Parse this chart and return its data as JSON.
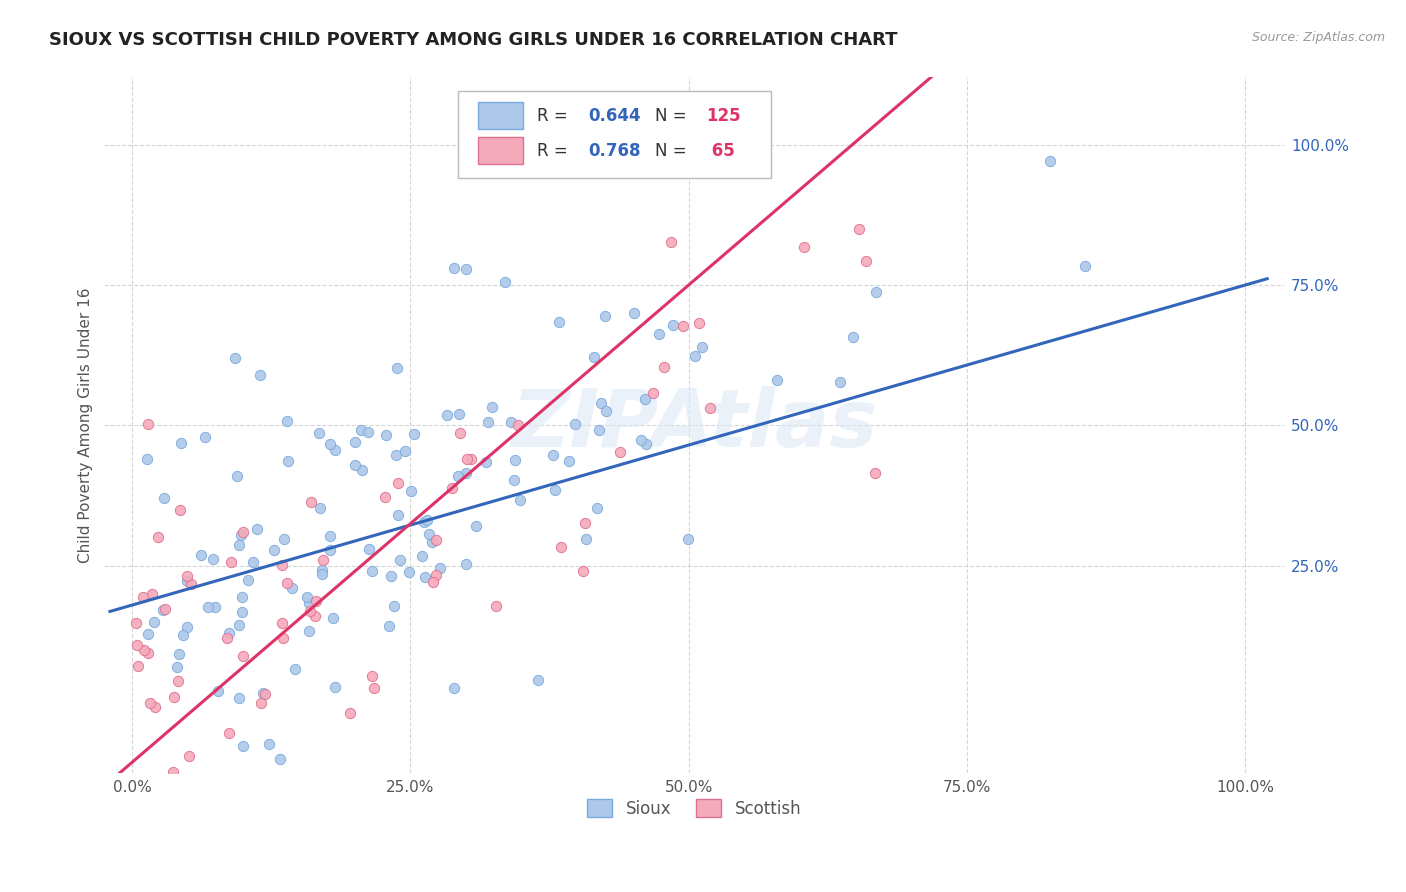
{
  "title": "SIOUX VS SCOTTISH CHILD POVERTY AMONG GIRLS UNDER 16 CORRELATION CHART",
  "source": "Source: ZipAtlas.com",
  "ylabel": "Child Poverty Among Girls Under 16",
  "watermark": "ZIPAtlas",
  "xtick_labels": [
    "0.0%",
    "25.0%",
    "50.0%",
    "75.0%",
    "100.0%"
  ],
  "xtick_vals": [
    0.0,
    0.25,
    0.5,
    0.75,
    1.0
  ],
  "ytick_labels": [
    "25.0%",
    "50.0%",
    "75.0%",
    "100.0%"
  ],
  "ytick_vals": [
    0.25,
    0.5,
    0.75,
    1.0
  ],
  "sioux_color": "#adc8e8",
  "scottish_color": "#f5aabb",
  "sioux_edge_color": "#7aaadd",
  "scottish_edge_color": "#e07090",
  "sioux_line_color": "#3366bb",
  "scottish_line_color": "#dd3366",
  "sioux_R": 0.644,
  "sioux_N": 125,
  "scottish_R": 0.768,
  "scottish_N": 65,
  "legend_label_sioux": "Sioux",
  "legend_label_scottish": "Scottish",
  "background_color": "#ffffff",
  "grid_color": "#cccccc",
  "title_color": "#222222",
  "ytick_color": "#3366bb"
}
